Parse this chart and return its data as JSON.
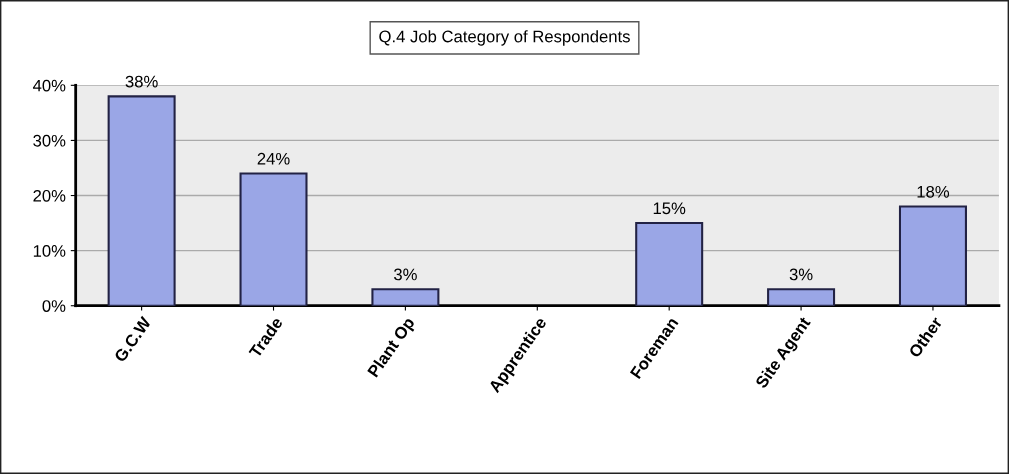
{
  "chart_data": {
    "type": "bar",
    "title": "Q.4 Job Category of Respondents",
    "categories": [
      "G.C.W",
      "Trade",
      "Plant Op",
      "Apprentice",
      "Foreman",
      "Site Agent",
      "Other"
    ],
    "values": [
      38,
      24,
      3,
      0,
      15,
      3,
      18
    ],
    "value_labels": [
      "38%",
      "24%",
      "3%",
      null,
      "15%",
      "3%",
      "18%"
    ],
    "color": "#9aa6e6",
    "ylim": [
      0,
      40
    ],
    "yticks": [
      {
        "value": 0,
        "label": "0%"
      },
      {
        "value": 10,
        "label": "10%"
      },
      {
        "value": 20,
        "label": "20%"
      },
      {
        "value": 30,
        "label": "30%"
      },
      {
        "value": 40,
        "label": "40%"
      }
    ],
    "grid": "y"
  }
}
